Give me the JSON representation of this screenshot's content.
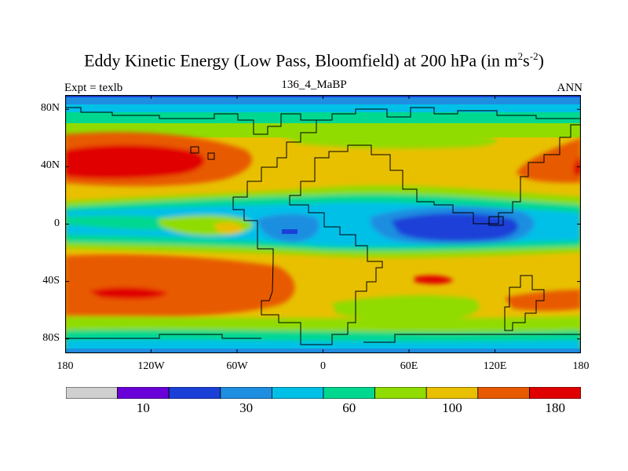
{
  "title": {
    "main": "Eddy Kinetic Energy (Low Pass, Bloomfield) at 200 hPa (in m",
    "sup1": "2",
    "mid": "s",
    "sup2": "-2",
    "end": ")"
  },
  "subtitle": "136_4_MaBP",
  "left_label": "Expt = texlb",
  "right_label": "ANN",
  "axes": {
    "y_ticks": [
      {
        "label": "80N",
        "lat": 80
      },
      {
        "label": "40N",
        "lat": 40
      },
      {
        "label": "0",
        "lat": 0
      },
      {
        "label": "40S",
        "lat": -40
      },
      {
        "label": "80S",
        "lat": -80
      }
    ],
    "x_ticks": [
      {
        "label": "180",
        "lon": -180
      },
      {
        "label": "120W",
        "lon": -120
      },
      {
        "label": "60W",
        "lon": -60
      },
      {
        "label": "0",
        "lon": 0
      },
      {
        "label": "60E",
        "lon": 60
      },
      {
        "label": "120E",
        "lon": 120
      },
      {
        "label": "180",
        "lon": 180
      }
    ],
    "lon_range": [
      -180,
      180
    ],
    "lat_range": [
      -90,
      90
    ]
  },
  "colorbar": {
    "colors": [
      "#d0d0d0",
      "#6a00d8",
      "#1a40d8",
      "#1e8ee0",
      "#00c0e8",
      "#00d890",
      "#90dc00",
      "#e8c000",
      "#e85a00",
      "#e00000"
    ],
    "labels": [
      {
        "text": "10",
        "boundary": 2
      },
      {
        "text": "30",
        "boundary": 4
      },
      {
        "text": "60",
        "boundary": 6
      },
      {
        "text": "100",
        "boundary": 8
      },
      {
        "text": "180",
        "boundary": 10
      }
    ]
  },
  "colors": {
    "frame": "#000000",
    "band_blue": "#1a40d8"
  }
}
